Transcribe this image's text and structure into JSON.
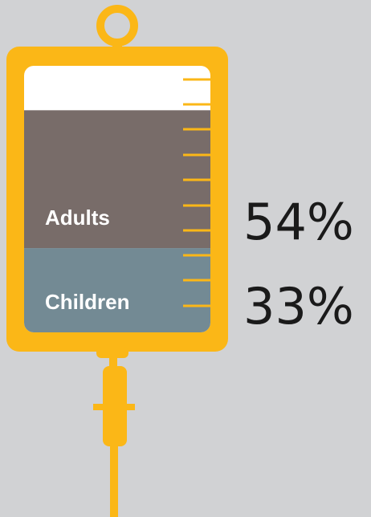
{
  "chart_data": {
    "type": "bar",
    "stacked": true,
    "series": [
      {
        "name": "Children",
        "color": "#738a94",
        "values": [
          33
        ],
        "value_labels": [
          "33%"
        ]
      },
      {
        "name": "Adults",
        "color": "#786c69",
        "values": [
          54
        ],
        "value_labels": [
          "54%"
        ]
      }
    ],
    "ylim": [
      0,
      100
    ]
  }
}
